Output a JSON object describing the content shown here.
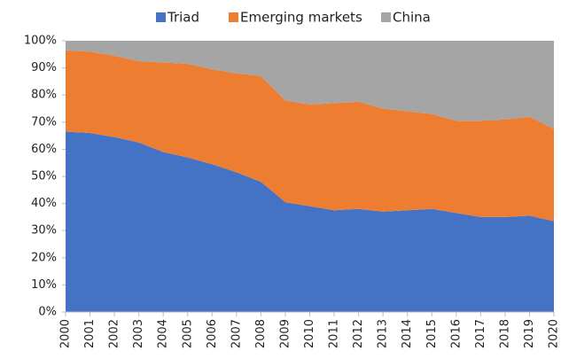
{
  "chart_data": {
    "type": "stacked_area",
    "categories": [
      "2000",
      "2001",
      "2002",
      "2003",
      "2004",
      "2005",
      "2006",
      "2007",
      "2008",
      "2009",
      "2010",
      "2011",
      "2012",
      "2013",
      "2014",
      "2015",
      "2016",
      "2017",
      "2018",
      "2019",
      "2020"
    ],
    "series": [
      {
        "name": "Triad",
        "color": "#4472c4",
        "values": [
          66.5,
          66,
          64.5,
          62.5,
          59,
          57,
          54.5,
          51.5,
          48,
          40.5,
          39,
          37.5,
          38,
          37,
          37.5,
          38,
          36.5,
          35,
          35,
          35.5,
          33.5
        ]
      },
      {
        "name": "Emerging markets",
        "color": "#ed7d31",
        "values": [
          30,
          30,
          30,
          30,
          33,
          34.5,
          35,
          36.5,
          39,
          37.5,
          37.5,
          39.5,
          39.5,
          38,
          36.5,
          35,
          34,
          35.5,
          36,
          36.5,
          34
        ]
      },
      {
        "name": "China",
        "color": "#a5a5a5",
        "values": [
          3.5,
          4,
          5.5,
          7.5,
          8,
          8.5,
          10.5,
          12,
          13,
          22,
          23.5,
          23,
          22.5,
          25,
          26,
          27,
          29.5,
          29.5,
          29,
          28,
          32.5
        ]
      }
    ],
    "ylim": [
      0,
      100
    ],
    "yticks": [
      {
        "value": 0,
        "label": "0%"
      },
      {
        "value": 10,
        "label": "10%"
      },
      {
        "value": 20,
        "label": "20%"
      },
      {
        "value": 30,
        "label": "30%"
      },
      {
        "value": 40,
        "label": "40%"
      },
      {
        "value": 50,
        "label": "50%"
      },
      {
        "value": 60,
        "label": "60%"
      },
      {
        "value": 70,
        "label": "70%"
      },
      {
        "value": 80,
        "label": "80%"
      },
      {
        "value": 90,
        "label": "90%"
      },
      {
        "value": 100,
        "label": "100%"
      }
    ],
    "legend": "top"
  }
}
